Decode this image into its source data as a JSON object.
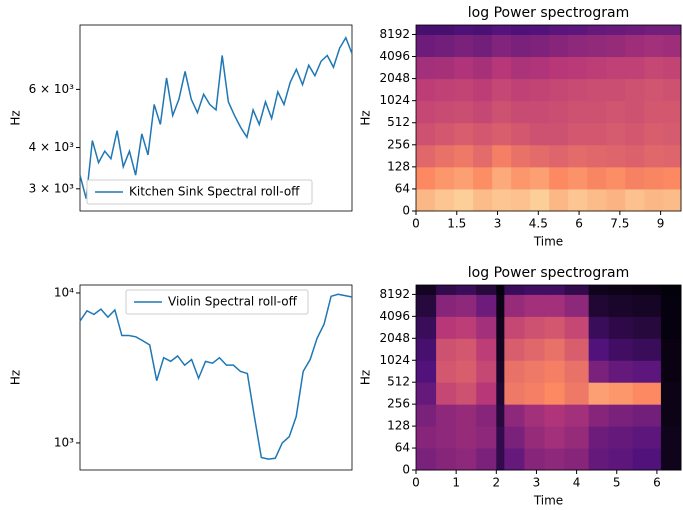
{
  "chart_data": [
    {
      "type": "line",
      "yscale": "log",
      "ylabel": "Hz",
      "legend": "lower left",
      "ylim": [
        2570,
        9400
      ],
      "xlim": [
        0,
        44
      ],
      "yticks": [
        {
          "value": 3000,
          "label": "3 × 10³"
        },
        {
          "value": 4000,
          "label": "4 × 10³"
        },
        {
          "value": 6000,
          "label": "6 × 10³"
        }
      ],
      "series": [
        {
          "name": "Kitchen Sink Spectral roll-off",
          "color": "#1f77b4",
          "values": [
            3300,
            2800,
            4200,
            3600,
            3900,
            3700,
            4500,
            3500,
            3900,
            3300,
            4400,
            3800,
            5400,
            4700,
            6500,
            5000,
            5600,
            6800,
            5600,
            5100,
            5800,
            5400,
            5200,
            7600,
            5500,
            5000,
            4600,
            4300,
            5200,
            4700,
            5500,
            4900,
            5900,
            5400,
            6300,
            6900,
            6200,
            7100,
            6600,
            7300,
            7600,
            7000,
            8000,
            8600,
            7700
          ]
        }
      ]
    },
    {
      "type": "heatmap",
      "title": "log Power spectrogram",
      "xlabel": "Time",
      "ylabel": "Hz",
      "yscale": "symlog",
      "xlim": [
        0,
        9.75
      ],
      "ylim": [
        0,
        11025
      ],
      "xticks": [
        0,
        1.5,
        3,
        4.5,
        6,
        7.5,
        9
      ],
      "yticks": [
        0,
        64,
        128,
        256,
        512,
        1024,
        2048,
        4096,
        8192
      ],
      "x_edges": [
        0,
        0.7,
        1.4,
        2.1,
        2.8,
        3.5,
        4.2,
        4.9,
        5.6,
        6.3,
        7,
        7.7,
        8.4,
        9.1,
        9.75
      ],
      "y_edges": [
        0,
        64,
        128,
        256,
        512,
        1024,
        2048,
        4096,
        8192,
        11025
      ],
      "z": [
        [
          85,
          88,
          90,
          86,
          88,
          87,
          90,
          85,
          88,
          86,
          84,
          87,
          85,
          86
        ],
        [
          75,
          78,
          80,
          76,
          82,
          78,
          80,
          75,
          77,
          74,
          76,
          73,
          74,
          75
        ],
        [
          65,
          68,
          70,
          66,
          72,
          68,
          66,
          64,
          66,
          65,
          64,
          63,
          65,
          64
        ],
        [
          58,
          60,
          62,
          60,
          62,
          60,
          58,
          58,
          60,
          60,
          61,
          60,
          62,
          61
        ],
        [
          55,
          56,
          57,
          55,
          58,
          56,
          56,
          57,
          58,
          58,
          59,
          58,
          60,
          60
        ],
        [
          52,
          53,
          54,
          52,
          55,
          53,
          54,
          55,
          56,
          57,
          57,
          58,
          59,
          58
        ],
        [
          45,
          46,
          48,
          46,
          50,
          47,
          48,
          50,
          51,
          52,
          53,
          53,
          55,
          54
        ],
        [
          32,
          33,
          35,
          33,
          37,
          35,
          36,
          38,
          40,
          41,
          42,
          44,
          45,
          44
        ],
        [
          22,
          22,
          24,
          23,
          26,
          24,
          25,
          27,
          28,
          30,
          31,
          32,
          33,
          33
        ]
      ]
    },
    {
      "type": "line",
      "yscale": "log",
      "ylabel": "Hz",
      "legend": "upper center",
      "ylim": [
        660,
        11300
      ],
      "xlim": [
        0,
        39
      ],
      "yticks": [
        {
          "value": 1000,
          "label": "10³"
        },
        {
          "value": 10000,
          "label": "10⁴"
        }
      ],
      "series": [
        {
          "name": "Violin Spectral roll-off",
          "color": "#1f77b4",
          "values": [
            6500,
            7600,
            7200,
            7800,
            6900,
            7700,
            5200,
            5200,
            5100,
            4800,
            4500,
            2600,
            3700,
            3500,
            3800,
            3300,
            3600,
            2700,
            3500,
            3400,
            3700,
            3300,
            3300,
            3000,
            2900,
            1500,
            800,
            780,
            790,
            1000,
            1100,
            1500,
            3000,
            3600,
            5000,
            6200,
            9500,
            9800,
            9600,
            9400
          ]
        }
      ]
    },
    {
      "type": "heatmap",
      "title": "log Power spectrogram",
      "xlabel": "Time",
      "ylabel": "Hz",
      "yscale": "symlog",
      "xlim": [
        0,
        6.6
      ],
      "ylim": [
        0,
        11025
      ],
      "xticks": [
        0,
        1,
        2,
        3,
        4,
        5,
        6
      ],
      "yticks": [
        0,
        64,
        128,
        256,
        512,
        1024,
        2048,
        4096,
        8192
      ],
      "x_edges": [
        0,
        0.5,
        1,
        1.5,
        2,
        2.2,
        2.7,
        3.2,
        3.7,
        4.3,
        4.8,
        5.4,
        6.1,
        6.6
      ],
      "y_edges": [
        0,
        64,
        128,
        256,
        512,
        1024,
        2048,
        4096,
        8192,
        11025
      ],
      "z": [
        [
          35,
          38,
          40,
          35,
          15,
          30,
          38,
          40,
          38,
          30,
          28,
          25,
          5
        ],
        [
          38,
          40,
          42,
          40,
          15,
          35,
          42,
          45,
          42,
          32,
          30,
          28,
          5
        ],
        [
          35,
          40,
          42,
          38,
          12,
          40,
          45,
          48,
          45,
          38,
          35,
          33,
          4
        ],
        [
          30,
          55,
          58,
          50,
          10,
          70,
          72,
          75,
          70,
          80,
          78,
          75,
          4
        ],
        [
          25,
          60,
          62,
          55,
          8,
          68,
          70,
          72,
          68,
          35,
          30,
          28,
          3
        ],
        [
          22,
          58,
          60,
          52,
          6,
          62,
          65,
          68,
          62,
          25,
          20,
          18,
          3
        ],
        [
          18,
          50,
          52,
          45,
          5,
          55,
          58,
          60,
          55,
          18,
          14,
          12,
          2
        ],
        [
          12,
          38,
          40,
          32,
          4,
          42,
          45,
          45,
          40,
          10,
          8,
          7,
          2
        ],
        [
          6,
          15,
          18,
          12,
          2,
          18,
          20,
          20,
          15,
          5,
          4,
          3,
          1
        ]
      ]
    }
  ]
}
